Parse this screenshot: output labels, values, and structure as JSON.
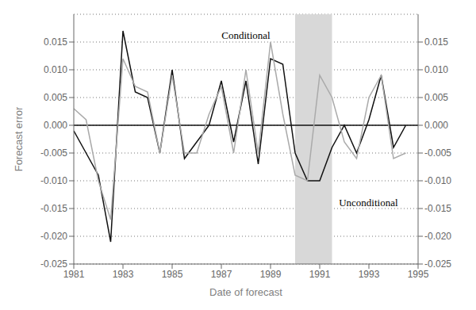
{
  "chart_data": {
    "type": "line",
    "xlabel": "Date of forecast",
    "ylabel": "Forecast error",
    "xlim": [
      1981,
      1995
    ],
    "xticks": [
      1981,
      1983,
      1985,
      1987,
      1989,
      1991,
      1993,
      1995
    ],
    "ylim": [
      -0.025,
      0.02
    ],
    "yticks": [
      -0.025,
      {
        "value": -0.02,
        "label": "-0.020"
      },
      -0.015,
      {
        "value": -0.01,
        "label": "-0.010"
      },
      -0.005,
      {
        "value": 0.0,
        "label": "0.000"
      },
      0.005,
      {
        "value": 0.01,
        "label": "0.010"
      },
      0.015
    ],
    "y2lim": [
      -0.025,
      0.02
    ],
    "y2ticks": [
      -0.025,
      {
        "value": -0.02,
        "label": "-0.020"
      },
      -0.015,
      {
        "value": -0.01,
        "label": "-0.010"
      },
      -0.005,
      {
        "value": 0.0,
        "label": "0.000"
      },
      0.005,
      {
        "value": 0.01,
        "label": "0.010"
      },
      0.015
    ],
    "grid": true,
    "shade": {
      "x": [
        1990.0,
        1991.5
      ],
      "color": "#d8d8d8"
    },
    "reference_lines": [
      {
        "y": 0,
        "color": "#111111"
      }
    ],
    "x": [
      1981.0,
      1981.5,
      1982.0,
      1982.5,
      1983.0,
      1983.5,
      1984.0,
      1984.5,
      1985.0,
      1985.5,
      1986.0,
      1986.5,
      1987.0,
      1987.5,
      1988.0,
      1988.5,
      1989.0,
      1989.5,
      1990.0,
      1990.5,
      1991.0,
      1991.5,
      1992.0,
      1992.5,
      1993.0,
      1993.5,
      1994.0,
      1994.5
    ],
    "series": [
      {
        "name": "Conditional",
        "color": "#111111",
        "values": [
          -0.001,
          -0.005,
          -0.009,
          -0.021,
          0.017,
          0.006,
          0.005,
          -0.005,
          0.01,
          -0.006,
          -0.003,
          0.0,
          0.008,
          -0.003,
          0.008,
          -0.007,
          0.012,
          0.011,
          -0.005,
          -0.01,
          -0.01,
          -0.004,
          0.0,
          -0.005,
          0.001,
          0.009,
          -0.004,
          0.0
        ]
      },
      {
        "name": "Unconditional",
        "color": "#aaaaaa",
        "values": [
          0.003,
          0.001,
          -0.01,
          -0.017,
          0.012,
          0.007,
          0.006,
          -0.005,
          0.009,
          -0.005,
          -0.005,
          0.002,
          0.007,
          -0.005,
          0.01,
          -0.005,
          0.015,
          0.002,
          -0.009,
          -0.01,
          0.009,
          0.005,
          -0.003,
          -0.006,
          0.005,
          0.009,
          -0.006,
          -0.005
        ]
      }
    ]
  }
}
